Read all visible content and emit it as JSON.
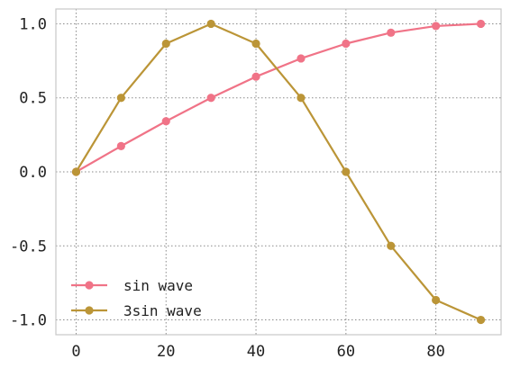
{
  "chart_data": {
    "type": "line",
    "title": "",
    "xlabel": "",
    "ylabel": "",
    "x": [
      0,
      10,
      20,
      30,
      40,
      50,
      60,
      70,
      80,
      90
    ],
    "xlim": [
      -4.5,
      94.5
    ],
    "ylim": [
      -1.1,
      1.1
    ],
    "xticks": [
      0,
      20,
      40,
      60,
      80
    ],
    "yticks": [
      -1.0,
      -0.5,
      0.0,
      0.5,
      1.0
    ],
    "xtick_labels": [
      "0",
      "20",
      "40",
      "60",
      "80"
    ],
    "ytick_labels": [
      "-1.0",
      "-0.5",
      "0.0",
      "0.5",
      "1.0"
    ],
    "grid": true,
    "legend_position": "lower-left",
    "series": [
      {
        "name": "sin wave",
        "color": "#f07387",
        "values": [
          0.0,
          0.174,
          0.342,
          0.5,
          0.643,
          0.766,
          0.866,
          0.94,
          0.985,
          1.0
        ]
      },
      {
        "name": "3sin wave",
        "color": "#bb9537",
        "values": [
          0.0,
          0.5,
          0.866,
          1.0,
          0.866,
          0.5,
          0.0,
          -0.5,
          -0.866,
          -1.0
        ]
      }
    ]
  }
}
